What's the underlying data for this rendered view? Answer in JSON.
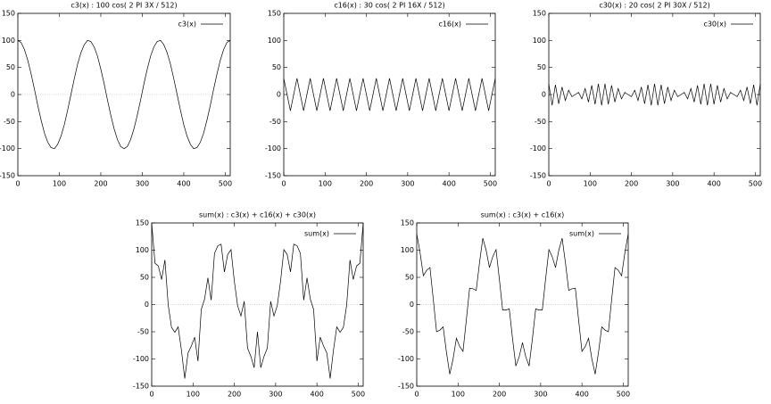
{
  "chart_data": [
    {
      "type": "line",
      "title": "c3(x) : 100 cos( 2 PI 3X / 512)",
      "x": [
        0,
        8,
        16,
        24,
        32,
        40,
        48,
        56,
        64,
        72,
        80,
        88,
        96,
        104,
        112,
        120,
        128,
        136,
        144,
        152,
        160,
        168,
        176,
        184,
        192,
        200,
        208,
        216,
        224,
        232,
        240,
        248,
        256,
        264,
        272,
        280,
        288,
        296,
        304,
        312,
        320,
        328,
        336,
        344,
        352,
        360,
        368,
        376,
        384,
        392,
        400,
        408,
        416,
        424,
        432,
        440,
        448,
        456,
        464,
        472,
        480,
        488,
        496,
        504,
        512
      ],
      "series": [
        {
          "name": "c3(x)",
          "color": "#000000",
          "values": [
            100,
            96,
            83,
            63,
            38,
            10,
            -20,
            -47,
            -71,
            -88,
            -98,
            -100,
            -92,
            -77,
            -56,
            -29,
            0,
            29,
            56,
            77,
            92,
            100,
            98,
            88,
            71,
            47,
            20,
            -10,
            -38,
            -63,
            -83,
            -96,
            -100,
            -96,
            -83,
            -63,
            -38,
            -10,
            20,
            47,
            71,
            88,
            98,
            100,
            92,
            77,
            56,
            29,
            0,
            -29,
            -56,
            -77,
            -92,
            -100,
            -98,
            -88,
            -71,
            -47,
            -20,
            10,
            38,
            63,
            83,
            96,
            100
          ]
        }
      ],
      "xlim": [
        0,
        512
      ],
      "ylim": [
        -150,
        150
      ],
      "xticks": [
        0,
        100,
        200,
        300,
        400,
        500
      ],
      "yticks": [
        -150,
        -100,
        -50,
        0,
        50,
        100,
        150
      ],
      "zeroaxis": true,
      "legend": "upper right"
    },
    {
      "type": "line",
      "title": "c16(x) : 30 cos( 2 PI 16X / 512)",
      "x": [
        0,
        8,
        16,
        24,
        32,
        40,
        48,
        56,
        64,
        72,
        80,
        88,
        96,
        104,
        112,
        120,
        128,
        136,
        144,
        152,
        160,
        168,
        176,
        184,
        192,
        200,
        208,
        216,
        224,
        232,
        240,
        248,
        256,
        264,
        272,
        280,
        288,
        296,
        304,
        312,
        320,
        328,
        336,
        344,
        352,
        360,
        368,
        376,
        384,
        392,
        400,
        408,
        416,
        424,
        432,
        440,
        448,
        456,
        464,
        472,
        480,
        488,
        496,
        504,
        512
      ],
      "series": [
        {
          "name": "c16(x)",
          "color": "#000000",
          "values": [
            30,
            0,
            -30,
            0,
            30,
            0,
            -30,
            0,
            30,
            0,
            -30,
            0,
            30,
            0,
            -30,
            0,
            30,
            0,
            -30,
            0,
            30,
            0,
            -30,
            0,
            30,
            0,
            -30,
            0,
            30,
            0,
            -30,
            0,
            30,
            0,
            -30,
            0,
            30,
            0,
            -30,
            0,
            30,
            0,
            -30,
            0,
            30,
            0,
            -30,
            0,
            30,
            0,
            -30,
            0,
            30,
            0,
            -30,
            0,
            30,
            0,
            -30,
            0,
            30,
            0,
            -30,
            0,
            30
          ]
        }
      ],
      "xlim": [
        0,
        512
      ],
      "ylim": [
        -150,
        150
      ],
      "xticks": [
        0,
        100,
        200,
        300,
        400,
        500
      ],
      "yticks": [
        -150,
        -100,
        -50,
        0,
        50,
        100,
        150
      ],
      "zeroaxis": true,
      "legend": "upper right"
    },
    {
      "type": "line",
      "title": "c30(x) : 20 cos( 2 PI 30X / 512)",
      "x": [
        0,
        8,
        16,
        24,
        32,
        40,
        48,
        56,
        64,
        72,
        80,
        88,
        96,
        104,
        112,
        120,
        128,
        136,
        144,
        152,
        160,
        168,
        176,
        184,
        192,
        200,
        208,
        216,
        224,
        232,
        240,
        248,
        256,
        264,
        272,
        280,
        288,
        296,
        304,
        312,
        320,
        328,
        336,
        344,
        352,
        360,
        368,
        376,
        384,
        392,
        400,
        408,
        416,
        424,
        432,
        440,
        448,
        456,
        464,
        472,
        480,
        488,
        496,
        504,
        512
      ],
      "series": [
        {
          "name": "c30(x)",
          "color": "#000000",
          "values": [
            20,
            -20,
            18,
            -17,
            14,
            -11,
            8,
            -4,
            0,
            4,
            -8,
            11,
            -14,
            17,
            -18,
            20,
            -20,
            20,
            -18,
            17,
            -14,
            11,
            -8,
            4,
            0,
            -4,
            8,
            -11,
            14,
            -17,
            18,
            -20,
            20,
            -20,
            18,
            -17,
            14,
            -11,
            8,
            -4,
            0,
            4,
            -8,
            11,
            -14,
            17,
            -18,
            20,
            -20,
            20,
            -18,
            17,
            -14,
            11,
            -8,
            4,
            0,
            -4,
            8,
            -11,
            14,
            -17,
            18,
            -20,
            20
          ]
        }
      ],
      "xlim": [
        0,
        512
      ],
      "ylim": [
        -150,
        150
      ],
      "xticks": [
        0,
        100,
        200,
        300,
        400,
        500
      ],
      "yticks": [
        -150,
        -100,
        -50,
        0,
        50,
        100,
        150
      ],
      "zeroaxis": true,
      "legend": "upper right"
    },
    {
      "type": "line",
      "title": "sum(x) : c3(x) + c16(x) + c30(x)",
      "x": [
        0,
        8,
        16,
        24,
        32,
        40,
        48,
        56,
        64,
        72,
        80,
        88,
        96,
        104,
        112,
        120,
        128,
        136,
        144,
        152,
        160,
        168,
        176,
        184,
        192,
        200,
        208,
        216,
        224,
        232,
        240,
        248,
        256,
        264,
        272,
        280,
        288,
        296,
        304,
        312,
        320,
        328,
        336,
        344,
        352,
        360,
        368,
        376,
        384,
        392,
        400,
        408,
        416,
        424,
        432,
        440,
        448,
        456,
        464,
        472,
        480,
        488,
        496,
        504,
        512
      ],
      "series": [
        {
          "name": "sum(x)",
          "color": "#000000",
          "values": [
            150,
            76,
            71,
            46,
            82,
            -1,
            -42,
            -51,
            -41,
            -84,
            -136,
            -89,
            -76,
            -60,
            -104,
            -9,
            10,
            49,
            8,
            94,
            108,
            111,
            60,
            92,
            101,
            43,
            -2,
            -21,
            6,
            -80,
            -95,
            -116,
            -50,
            -116,
            -95,
            -80,
            6,
            -21,
            -2,
            43,
            101,
            92,
            60,
            111,
            108,
            94,
            8,
            49,
            10,
            -9,
            -104,
            -60,
            -76,
            -89,
            -136,
            -84,
            -41,
            -51,
            -42,
            -1,
            82,
            46,
            71,
            76,
            150
          ]
        }
      ],
      "xlim": [
        0,
        512
      ],
      "ylim": [
        -150,
        150
      ],
      "xticks": [
        0,
        100,
        200,
        300,
        400,
        500
      ],
      "yticks": [
        -150,
        -100,
        -50,
        0,
        50,
        100,
        150
      ],
      "zeroaxis": true,
      "legend": "upper right"
    },
    {
      "type": "line",
      "title": "sum(x) : c3(x) + c16(x)",
      "x": [
        0,
        8,
        16,
        24,
        32,
        40,
        48,
        56,
        64,
        72,
        80,
        88,
        96,
        104,
        112,
        120,
        128,
        136,
        144,
        152,
        160,
        168,
        176,
        184,
        192,
        200,
        208,
        216,
        224,
        232,
        240,
        248,
        256,
        264,
        272,
        280,
        288,
        296,
        304,
        312,
        320,
        328,
        336,
        344,
        352,
        360,
        368,
        376,
        384,
        392,
        400,
        408,
        416,
        424,
        432,
        440,
        448,
        456,
        464,
        472,
        480,
        488,
        496,
        504,
        512
      ],
      "series": [
        {
          "name": "sum(x)",
          "color": "#000000",
          "values": [
            130,
            96,
            53,
            63,
            68,
            10,
            -50,
            -47,
            -41,
            -88,
            -128,
            -100,
            -62,
            -77,
            -86,
            -29,
            30,
            29,
            26,
            77,
            122,
            100,
            68,
            88,
            101,
            47,
            -10,
            -10,
            -8,
            -63,
            -113,
            -96,
            -70,
            -96,
            -113,
            -63,
            -8,
            -10,
            -10,
            47,
            101,
            88,
            68,
            100,
            122,
            77,
            26,
            29,
            30,
            -29,
            -86,
            -77,
            -62,
            -100,
            -128,
            -88,
            -41,
            -47,
            -50,
            10,
            68,
            63,
            53,
            96,
            130
          ]
        }
      ],
      "xlim": [
        0,
        512
      ],
      "ylim": [
        -150,
        150
      ],
      "xticks": [
        0,
        100,
        200,
        300,
        400,
        500
      ],
      "yticks": [
        -150,
        -100,
        -50,
        0,
        50,
        100,
        150
      ],
      "zeroaxis": true,
      "legend": "upper right"
    }
  ]
}
